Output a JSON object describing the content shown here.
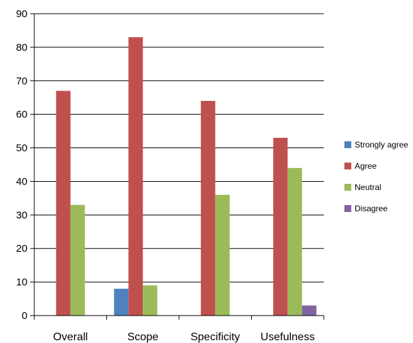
{
  "chart_data": {
    "type": "bar",
    "categories": [
      "Overall",
      "Scope",
      "Specificity",
      "Usefulness"
    ],
    "series": [
      {
        "name": "Strongly agree",
        "color": "#4F81BD",
        "values": [
          0,
          8,
          0,
          0
        ]
      },
      {
        "name": "Agree",
        "color": "#C0504D",
        "values": [
          67,
          83,
          64,
          53
        ]
      },
      {
        "name": "Neutral",
        "color": "#9BBB59",
        "values": [
          33,
          9,
          36,
          44
        ]
      },
      {
        "name": "Disagree",
        "color": "#8064A2",
        "values": [
          0,
          0,
          0,
          3
        ]
      }
    ],
    "ylim": [
      0,
      90
    ],
    "yticks": [
      0,
      10,
      20,
      30,
      40,
      50,
      60,
      70,
      80,
      90
    ],
    "grid": true,
    "legend_position": "right"
  }
}
